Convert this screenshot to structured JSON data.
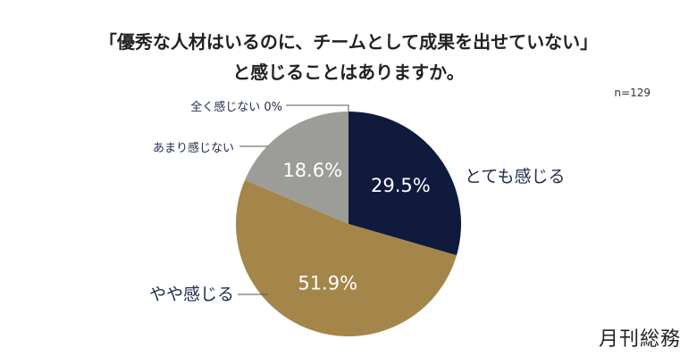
{
  "header": {
    "title_line1": "「優秀な人材はいるのに、チームとして成果を出せていない」",
    "title_line2": "と感じることはありますか。",
    "sample_size": "n=129"
  },
  "brand": {
    "logo_text": "月刊総務"
  },
  "chart_data": {
    "type": "pie",
    "title": "「優秀な人材はいるのに、チームとして成果を出せていない」と感じることはありますか。",
    "categories": [
      "とても感じる",
      "やや感じる",
      "あまり感じない",
      "全く感じない"
    ],
    "values": [
      29.5,
      51.9,
      18.6,
      0
    ],
    "value_labels": [
      "29.5%",
      "51.9%",
      "18.6%",
      "0%"
    ],
    "colors": [
      "#0f1a3d",
      "#a4864a",
      "#9c9d99",
      "#d0d0d0"
    ],
    "start": "12 o'clock, clockwise",
    "sample_size": "n=129"
  }
}
